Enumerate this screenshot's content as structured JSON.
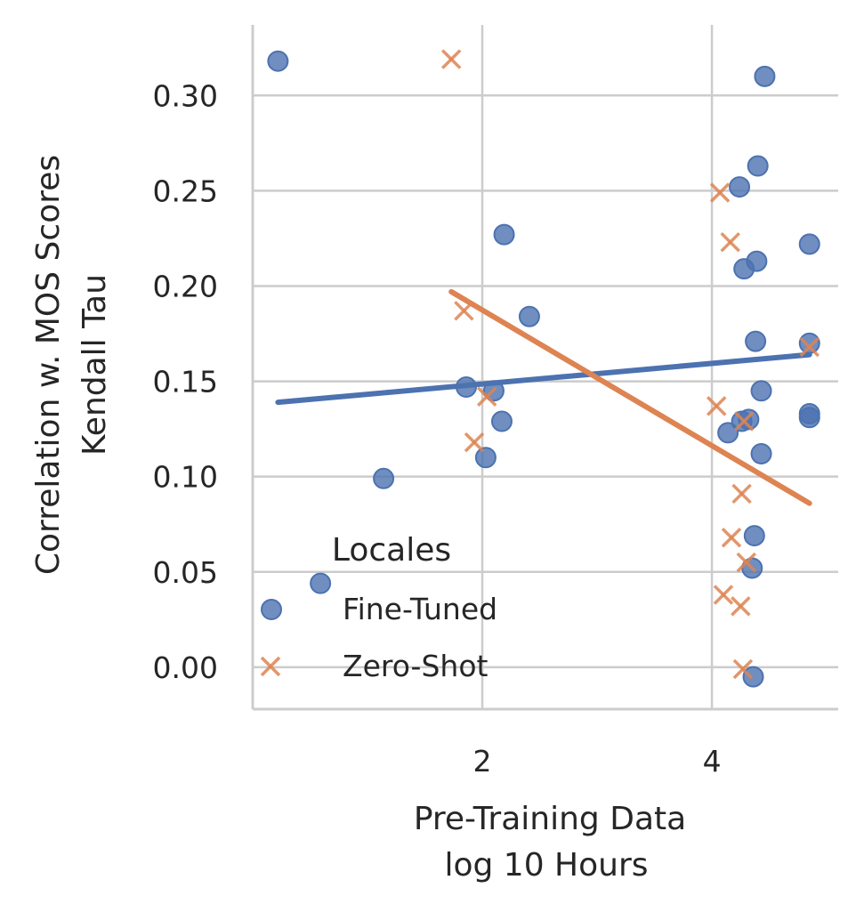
{
  "chart_data": {
    "type": "scatter",
    "title": "",
    "xlabel": [
      "Pre-Training Data",
      "log 10 Hours"
    ],
    "ylabel": [
      "Correlation w. MOS Scores",
      "Kendall Tau"
    ],
    "xlim": [
      0.0,
      5.1
    ],
    "ylim": [
      -0.022,
      0.337
    ],
    "xticks": [
      2,
      4
    ],
    "xtick_labels": [
      "2",
      "4"
    ],
    "yticks": [
      0.0,
      0.05,
      0.1,
      0.15,
      0.2,
      0.25,
      0.3
    ],
    "ytick_labels": [
      "0.00",
      "0.05",
      "0.10",
      "0.15",
      "0.20",
      "0.25",
      "0.30"
    ],
    "grid": true,
    "legend": {
      "title": "Locales",
      "placement": "lower-left",
      "entries": [
        "Fine-Tuned",
        "Zero-Shot"
      ]
    },
    "series": [
      {
        "name": "Fine-Tuned",
        "marker": "circle",
        "color": "#4c72b0",
        "points": [
          [
            0.22,
            0.318
          ],
          [
            0.59,
            0.044
          ],
          [
            1.14,
            0.099
          ],
          [
            1.86,
            0.147
          ],
          [
            2.03,
            0.11
          ],
          [
            2.1,
            0.145
          ],
          [
            2.17,
            0.129
          ],
          [
            2.19,
            0.227
          ],
          [
            2.41,
            0.184
          ],
          [
            4.14,
            0.123
          ],
          [
            4.24,
            0.252
          ],
          [
            4.26,
            0.129
          ],
          [
            4.28,
            0.209
          ],
          [
            4.32,
            0.13
          ],
          [
            4.35,
            0.052
          ],
          [
            4.36,
            -0.005
          ],
          [
            4.37,
            0.069
          ],
          [
            4.38,
            0.171
          ],
          [
            4.39,
            0.213
          ],
          [
            4.4,
            0.263
          ],
          [
            4.43,
            0.112
          ],
          [
            4.43,
            0.145
          ],
          [
            4.46,
            0.31
          ],
          [
            4.85,
            0.222
          ],
          [
            4.85,
            0.17
          ],
          [
            4.85,
            0.133
          ],
          [
            4.85,
            0.131
          ]
        ],
        "trend": [
          [
            0.22,
            0.139
          ],
          [
            4.85,
            0.164
          ]
        ]
      },
      {
        "name": "Zero-Shot",
        "marker": "x",
        "color": "#dd8452",
        "points": [
          [
            1.73,
            0.319
          ],
          [
            1.84,
            0.187
          ],
          [
            1.93,
            0.118
          ],
          [
            2.04,
            0.142
          ],
          [
            4.04,
            0.137
          ],
          [
            4.07,
            0.249
          ],
          [
            4.1,
            0.038
          ],
          [
            4.16,
            0.223
          ],
          [
            4.17,
            0.068
          ],
          [
            4.25,
            0.032
          ],
          [
            4.26,
            0.091
          ],
          [
            4.27,
            -0.001
          ],
          [
            4.28,
            0.129
          ],
          [
            4.3,
            0.055
          ],
          [
            4.85,
            0.168
          ]
        ],
        "trend": [
          [
            1.73,
            0.197
          ],
          [
            4.85,
            0.086
          ]
        ]
      }
    ]
  }
}
